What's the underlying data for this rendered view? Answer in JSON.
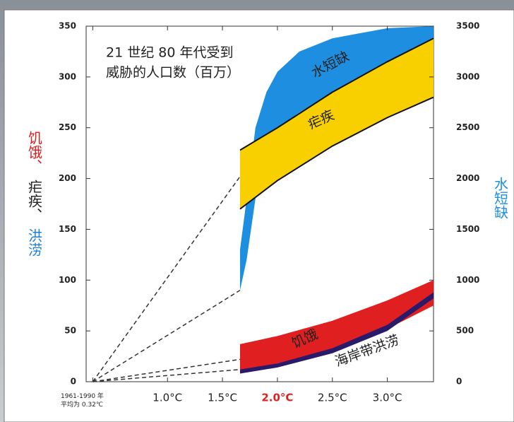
{
  "chart_data": {
    "type": "band",
    "annotation": [
      "21 世纪 80 年代受到",
      "威胁的人口数（百万）"
    ],
    "ylabel": [
      {
        "text": "饥饿、",
        "color": "#e02020"
      },
      {
        "text": "疟疾、",
        "color": "#222222"
      },
      {
        "text": "洪涝",
        "color": "#1e7fd8"
      }
    ],
    "y2label": {
      "text": "水短缺",
      "color": "#1e8fe0"
    },
    "xlim": [
      0.26,
      3.42
    ],
    "xticks": [
      {
        "value": 0.32,
        "label": "1961-1990 年\n平均为 0.32℃"
      },
      {
        "value": 1.0,
        "label": "1.0°C"
      },
      {
        "value": 1.5,
        "label": "1.5°C"
      },
      {
        "value": 2.0,
        "label": "2.0°C",
        "color": "#e02020"
      },
      {
        "value": 2.5,
        "label": "2.5°C"
      },
      {
        "value": 3.0,
        "label": "3.0°C"
      }
    ],
    "ylim": [
      0,
      350
    ],
    "yticks": [
      0,
      50,
      100,
      150,
      200,
      250,
      300,
      350
    ],
    "y2lim": [
      0,
      3500
    ],
    "y2ticks": [
      0,
      500,
      1000,
      1500,
      2000,
      2500,
      3000,
      3500
    ],
    "dashed_line_ends": [
      202,
      90,
      22,
      12
    ],
    "series": [
      {
        "name": "水短缺",
        "color": "#1e8fe0",
        "axis": "y2",
        "x": [
          1.66,
          1.72,
          1.8,
          1.9,
          2.0,
          2.2,
          2.5,
          3.0,
          3.42
        ],
        "lower": [
          900,
          1200,
          1800,
          2300,
          2500,
          2650,
          2850,
          3100,
          3250
        ],
        "upper": [
          1300,
          1800,
          2500,
          2850,
          3050,
          3250,
          3380,
          3480,
          3500
        ]
      },
      {
        "name": "疟疾",
        "color": "#f8d000",
        "edge_color": "#111111",
        "x": [
          1.66,
          2.0,
          2.5,
          3.0,
          3.42
        ],
        "lower": [
          170,
          198,
          232,
          260,
          280
        ],
        "upper": [
          228,
          250,
          285,
          315,
          338
        ]
      },
      {
        "name": "饥饿",
        "color": "#e02020",
        "x": [
          1.66,
          2.0,
          2.5,
          3.0,
          3.42
        ],
        "lower": [
          10,
          18,
          32,
          52,
          75
        ],
        "upper": [
          37,
          45,
          60,
          80,
          100
        ]
      },
      {
        "name": "海岸带洪涝",
        "color": "#2a1a6a",
        "x": [
          1.66,
          2.0,
          2.5,
          3.0,
          3.42
        ],
        "lower": [
          8,
          14,
          28,
          50,
          82
        ],
        "upper": [
          12,
          18,
          33,
          56,
          88
        ]
      }
    ]
  }
}
